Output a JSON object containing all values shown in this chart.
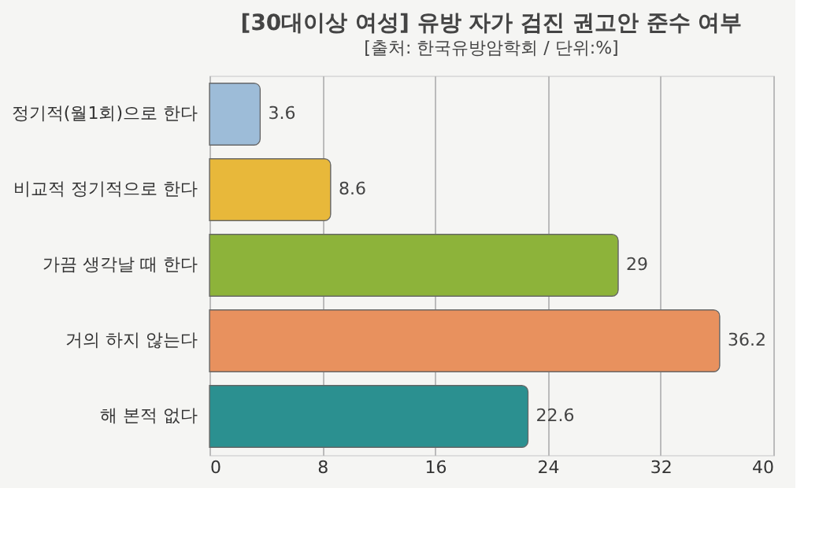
{
  "chart_data": {
    "type": "bar",
    "orientation": "horizontal",
    "title": "[30대이상 여성] 유방 자가 검진 권고안 준수 여부",
    "subtitle": "[출처: 한국유방암학회 / 단위:%]",
    "categories": [
      "정기적(월1회)으로 한다",
      "비교적 정기적으로 한다",
      "가끔 생각날 때 한다",
      "거의 하지 않는다",
      "해 본적 없다"
    ],
    "values": [
      3.6,
      8.6,
      29,
      36.2,
      22.6
    ],
    "colors": [
      "#9dbcd8",
      "#e8b83a",
      "#8db33a",
      "#e8915e",
      "#2b9090"
    ],
    "xlim": [
      0,
      40
    ],
    "xticks": [
      0,
      8,
      16,
      24,
      32,
      40
    ],
    "grid": "x",
    "data_labels": true
  }
}
